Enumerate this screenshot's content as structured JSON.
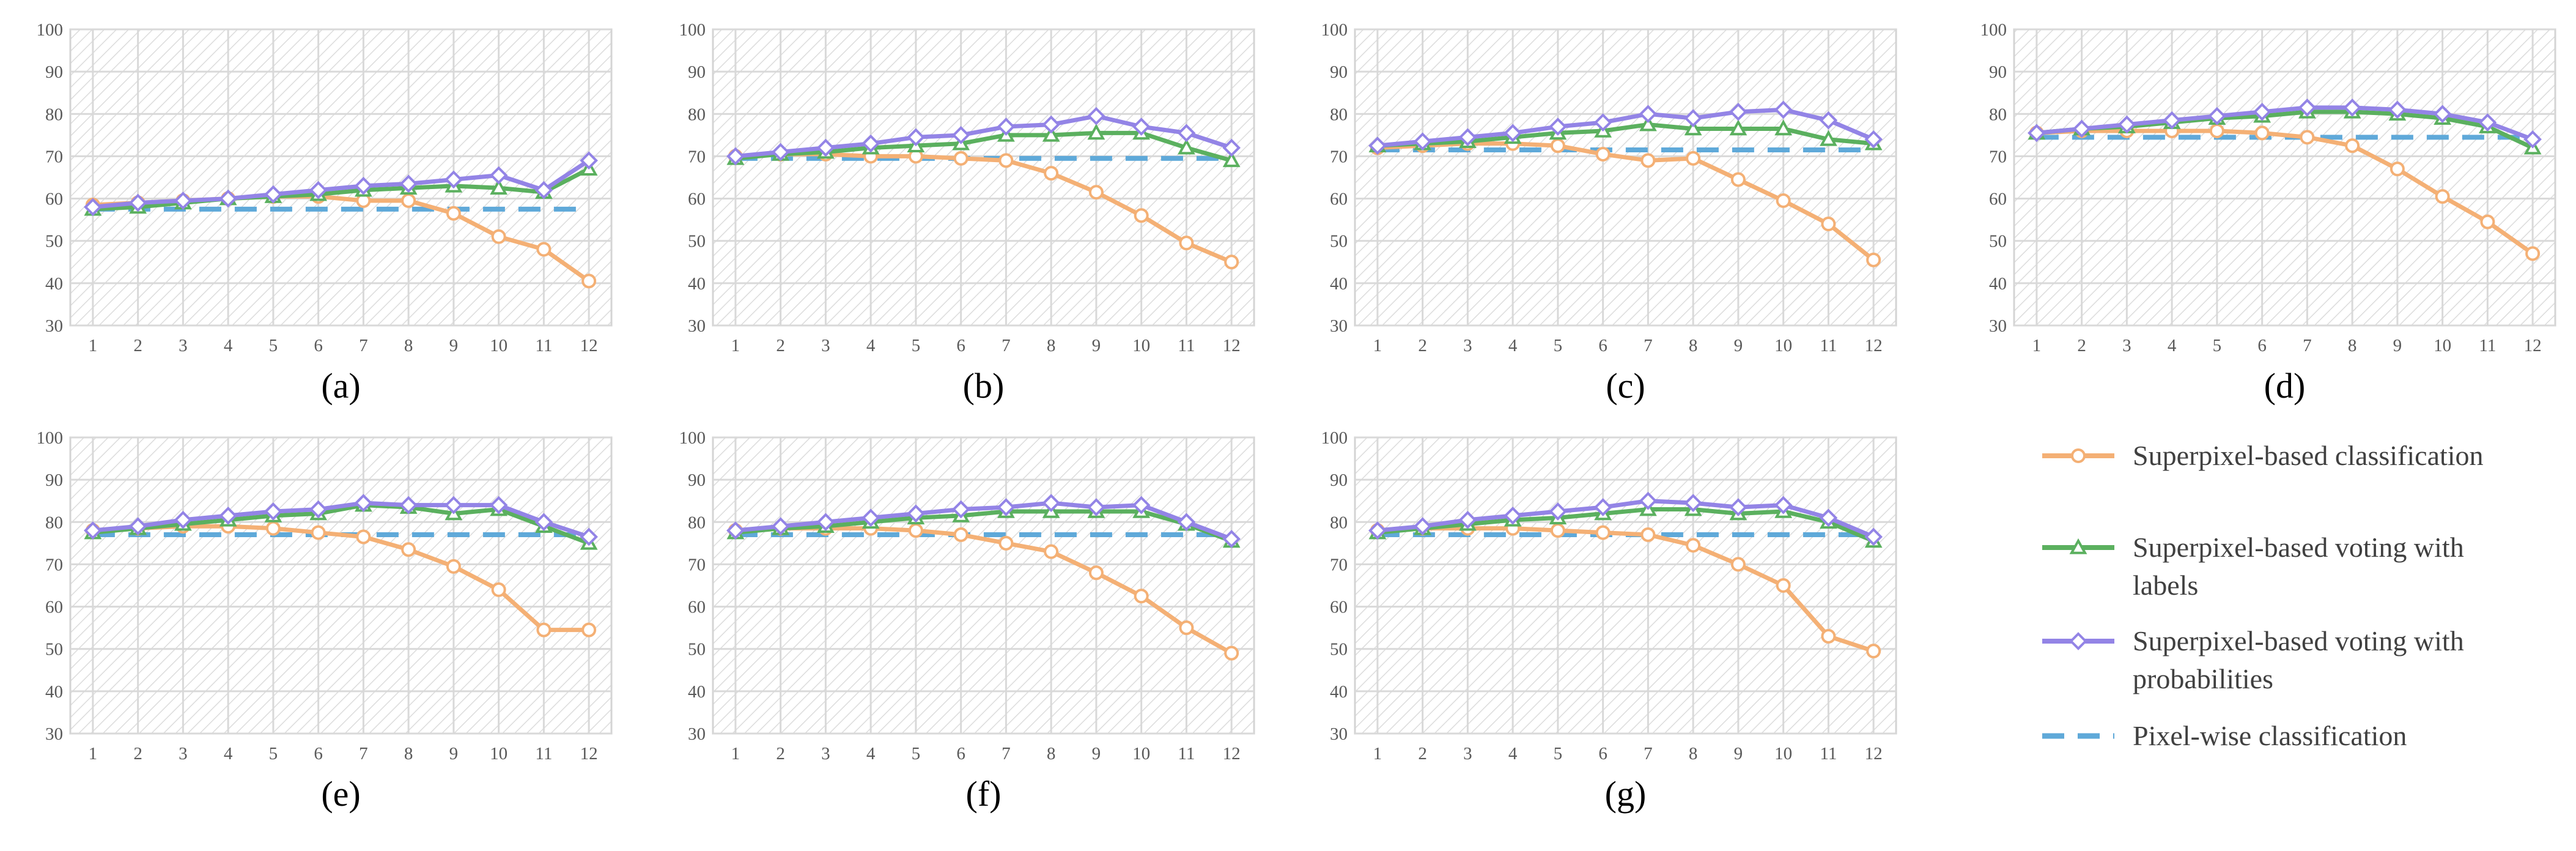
{
  "colors": {
    "superpixel_classification": "#f4b075",
    "voting_labels": "#5bb05f",
    "voting_probabilities": "#9384e6",
    "pixel_wise": "#5fa9d9"
  },
  "legend": {
    "items": [
      {
        "key": "superpixel_classification",
        "lines": [
          "Superpixel-based classification"
        ],
        "marker": "circle"
      },
      {
        "key": "voting_labels",
        "lines": [
          "Superpixel-based voting with",
          "labels"
        ],
        "marker": "triangle"
      },
      {
        "key": "voting_probabilities",
        "lines": [
          "Superpixel-based voting with",
          "probabilities"
        ],
        "marker": "diamond"
      },
      {
        "key": "pixel_wise",
        "lines": [
          "Pixel-wise classification"
        ],
        "marker": "none"
      }
    ]
  },
  "chart_data": [
    {
      "type": "line",
      "label": "(a)",
      "x": [
        1,
        2,
        3,
        4,
        5,
        6,
        7,
        8,
        9,
        10,
        11,
        12
      ],
      "ylim": [
        30,
        100
      ],
      "yticks": [
        30,
        40,
        50,
        60,
        70,
        80,
        90,
        100
      ],
      "series": [
        {
          "key": "superpixel_classification",
          "name": "Superpixel-based classification",
          "values": [
            58.5,
            59,
            59.5,
            60,
            60.5,
            60.5,
            59.5,
            59.5,
            56.5,
            51,
            48,
            40.5
          ]
        },
        {
          "key": "voting_labels",
          "name": "Superpixel-based voting with labels",
          "values": [
            57.5,
            58,
            59,
            60,
            60.5,
            61,
            62,
            62.5,
            63,
            62.5,
            61.5,
            67
          ]
        },
        {
          "key": "voting_probabilities",
          "name": "Superpixel-based voting with probabilities",
          "values": [
            58,
            59,
            59.5,
            60,
            61,
            62,
            63,
            63.5,
            64.5,
            65.5,
            62,
            69
          ]
        },
        {
          "key": "pixel_wise",
          "name": "Pixel-wise classification",
          "values": [
            57.5,
            57.5,
            57.5,
            57.5,
            57.5,
            57.5,
            57.5,
            57.5,
            57.5,
            57.5,
            57.5,
            57.5
          ]
        }
      ]
    },
    {
      "type": "line",
      "label": "(b)",
      "x": [
        1,
        2,
        3,
        4,
        5,
        6,
        7,
        8,
        9,
        10,
        11,
        12
      ],
      "ylim": [
        30,
        100
      ],
      "yticks": [
        30,
        40,
        50,
        60,
        70,
        80,
        90,
        100
      ],
      "series": [
        {
          "key": "superpixel_classification",
          "name": "Superpixel-based classification",
          "values": [
            70,
            70.5,
            70.5,
            70,
            70,
            69.5,
            69,
            66,
            61.5,
            56,
            49.5,
            45
          ]
        },
        {
          "key": "voting_labels",
          "name": "Superpixel-based voting with labels",
          "values": [
            69.5,
            70.5,
            71,
            72,
            72.5,
            73,
            75,
            75,
            75.5,
            75.5,
            72,
            69
          ]
        },
        {
          "key": "voting_probabilities",
          "name": "Superpixel-based voting with probabilities",
          "values": [
            70,
            71,
            72,
            73,
            74.5,
            75,
            77,
            77.5,
            79.5,
            77,
            75.5,
            72
          ]
        },
        {
          "key": "pixel_wise",
          "name": "Pixel-wise classification",
          "values": [
            69.5,
            69.5,
            69.5,
            69.5,
            69.5,
            69.5,
            69.5,
            69.5,
            69.5,
            69.5,
            69.5,
            69.5
          ]
        }
      ]
    },
    {
      "type": "line",
      "label": "(c)",
      "x": [
        1,
        2,
        3,
        4,
        5,
        6,
        7,
        8,
        9,
        10,
        11,
        12
      ],
      "ylim": [
        30,
        100
      ],
      "yticks": [
        30,
        40,
        50,
        60,
        70,
        80,
        90,
        100
      ],
      "series": [
        {
          "key": "superpixel_classification",
          "name": "Superpixel-based classification",
          "values": [
            72,
            72.5,
            73,
            73,
            72.5,
            70.5,
            69,
            69.5,
            64.5,
            59.5,
            54,
            45.5
          ]
        },
        {
          "key": "voting_labels",
          "name": "Superpixel-based voting with labels",
          "values": [
            72.5,
            73,
            73.5,
            74.5,
            75.5,
            76,
            77.5,
            76.5,
            76.5,
            76.5,
            74,
            73
          ]
        },
        {
          "key": "voting_probabilities",
          "name": "Superpixel-based voting with probabilities",
          "values": [
            72.5,
            73.5,
            74.5,
            75.5,
            77,
            78,
            80,
            79,
            80.5,
            81,
            78.5,
            74
          ]
        },
        {
          "key": "pixel_wise",
          "name": "Pixel-wise classification",
          "values": [
            71.5,
            71.5,
            71.5,
            71.5,
            71.5,
            71.5,
            71.5,
            71.5,
            71.5,
            71.5,
            71.5,
            71.5
          ]
        }
      ]
    },
    {
      "type": "line",
      "label": "(d)",
      "x": [
        1,
        2,
        3,
        4,
        5,
        6,
        7,
        8,
        9,
        10,
        11,
        12
      ],
      "ylim": [
        30,
        100
      ],
      "yticks": [
        30,
        40,
        50,
        60,
        70,
        80,
        90,
        100
      ],
      "series": [
        {
          "key": "superpixel_classification",
          "name": "Superpixel-based classification",
          "values": [
            75.5,
            76,
            76,
            76,
            76,
            75.5,
            74.5,
            72.5,
            67,
            60.5,
            54.5,
            47
          ]
        },
        {
          "key": "voting_labels",
          "name": "Superpixel-based voting with labels",
          "values": [
            75.5,
            76.5,
            77,
            78,
            79,
            79.5,
            80.5,
            80.5,
            80,
            79,
            77,
            72
          ]
        },
        {
          "key": "voting_probabilities",
          "name": "Superpixel-based voting with probabilities",
          "values": [
            75.5,
            76.5,
            77.5,
            78.5,
            79.5,
            80.5,
            81.5,
            81.5,
            81,
            80,
            78,
            74
          ]
        },
        {
          "key": "pixel_wise",
          "name": "Pixel-wise classification",
          "values": [
            74.5,
            74.5,
            74.5,
            74.5,
            74.5,
            74.5,
            74.5,
            74.5,
            74.5,
            74.5,
            74.5,
            74.5
          ]
        }
      ]
    },
    {
      "type": "line",
      "label": "(e)",
      "x": [
        1,
        2,
        3,
        4,
        5,
        6,
        7,
        8,
        9,
        10,
        11,
        12
      ],
      "ylim": [
        30,
        100
      ],
      "yticks": [
        30,
        40,
        50,
        60,
        70,
        80,
        90,
        100
      ],
      "series": [
        {
          "key": "superpixel_classification",
          "name": "Superpixel-based classification",
          "values": [
            78,
            78.5,
            79,
            79,
            78.5,
            77.5,
            76.5,
            73.5,
            69.5,
            64,
            54.5,
            54.5
          ]
        },
        {
          "key": "voting_labels",
          "name": "Superpixel-based voting with labels",
          "values": [
            77.5,
            78.5,
            79.5,
            80.5,
            81.5,
            82,
            84,
            83.5,
            82,
            83,
            79,
            75
          ]
        },
        {
          "key": "voting_probabilities",
          "name": "Superpixel-based voting with probabilities",
          "values": [
            78,
            79,
            80.5,
            81.5,
            82.5,
            83,
            84.5,
            84,
            84,
            84,
            80,
            76.5
          ]
        },
        {
          "key": "pixel_wise",
          "name": "Pixel-wise classification",
          "values": [
            77,
            77,
            77,
            77,
            77,
            77,
            77,
            77,
            77,
            77,
            77,
            77
          ]
        }
      ]
    },
    {
      "type": "line",
      "label": "(f)",
      "x": [
        1,
        2,
        3,
        4,
        5,
        6,
        7,
        8,
        9,
        10,
        11,
        12
      ],
      "ylim": [
        30,
        100
      ],
      "yticks": [
        30,
        40,
        50,
        60,
        70,
        80,
        90,
        100
      ],
      "series": [
        {
          "key": "superpixel_classification",
          "name": "Superpixel-based classification",
          "values": [
            78,
            78.5,
            78.5,
            78.5,
            78,
            77,
            75,
            73,
            68,
            62.5,
            55,
            49
          ]
        },
        {
          "key": "voting_labels",
          "name": "Superpixel-based voting with labels",
          "values": [
            77.5,
            78.5,
            79,
            80,
            81,
            81.5,
            82.5,
            82.5,
            82.5,
            82.5,
            79.5,
            75.5
          ]
        },
        {
          "key": "voting_probabilities",
          "name": "Superpixel-based voting with probabilities",
          "values": [
            78,
            79,
            80,
            81,
            82,
            83,
            83.5,
            84.5,
            83.5,
            84,
            80,
            76
          ]
        },
        {
          "key": "pixel_wise",
          "name": "Pixel-wise classification",
          "values": [
            77,
            77,
            77,
            77,
            77,
            77,
            77,
            77,
            77,
            77,
            77,
            77
          ]
        }
      ]
    },
    {
      "type": "line",
      "label": "(g)",
      "x": [
        1,
        2,
        3,
        4,
        5,
        6,
        7,
        8,
        9,
        10,
        11,
        12
      ],
      "ylim": [
        30,
        100
      ],
      "yticks": [
        30,
        40,
        50,
        60,
        70,
        80,
        90,
        100
      ],
      "series": [
        {
          "key": "superpixel_classification",
          "name": "Superpixel-based classification",
          "values": [
            78,
            78.5,
            78.5,
            78.5,
            78,
            77.5,
            77,
            74.5,
            70,
            65,
            53,
            49.5
          ]
        },
        {
          "key": "voting_labels",
          "name": "Superpixel-based voting with labels",
          "values": [
            77.5,
            78.5,
            79.5,
            80.5,
            81,
            82,
            83,
            83,
            82,
            82.5,
            80,
            75.5
          ]
        },
        {
          "key": "voting_probabilities",
          "name": "Superpixel-based voting with probabilities",
          "values": [
            78,
            79,
            80.5,
            81.5,
            82.5,
            83.5,
            85,
            84.5,
            83.5,
            84,
            81,
            76.5
          ]
        },
        {
          "key": "pixel_wise",
          "name": "Pixel-wise classification",
          "values": [
            77,
            77,
            77,
            77,
            77,
            77,
            77,
            77,
            77,
            77,
            77,
            77
          ]
        }
      ]
    }
  ]
}
